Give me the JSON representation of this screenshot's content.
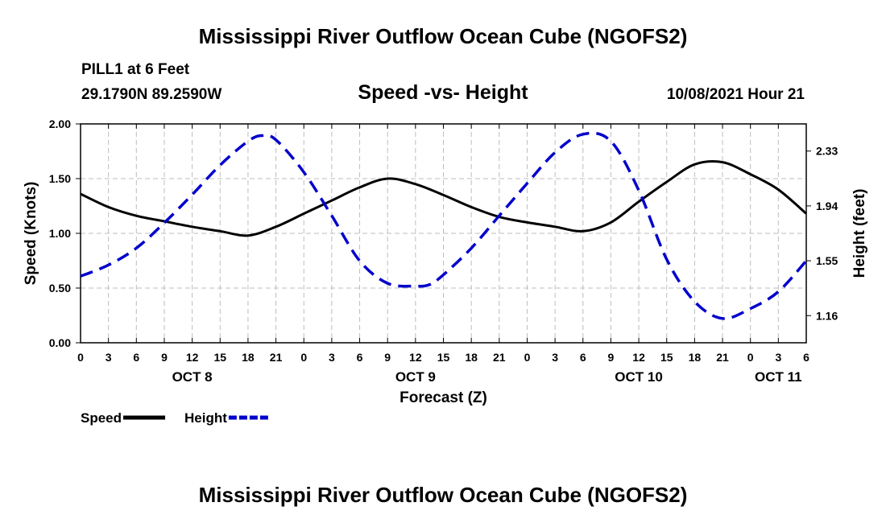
{
  "page": {
    "top_title": "Mississippi River Outflow Ocean Cube (NGOFS2)",
    "bottom_title": "Mississippi River Outflow Ocean Cube (NGOFS2)",
    "station": "PILL1 at 6 Feet",
    "coords": "29.1790N  89.2590W",
    "datetime": "10/08/2021 Hour 21"
  },
  "chart_data": {
    "type": "line",
    "title": "Speed -vs- Height",
    "xlabel": "Forecast (Z)",
    "ylabel": "Speed (Knots)",
    "ylabel_right": "Height (feet)",
    "x_hours_range": [
      0,
      78
    ],
    "ylim": [
      0,
      2
    ],
    "yticks": [
      "0.00",
      "0.50",
      "1.00",
      "1.50",
      "2.00"
    ],
    "ylim_right": [
      0.967,
      2.523
    ],
    "yticks_right": [
      1.16,
      1.55,
      1.94,
      2.33
    ],
    "xticks": [
      "0",
      "3",
      "6",
      "9",
      "12",
      "15",
      "18",
      "21",
      "0",
      "3",
      "6",
      "9",
      "12",
      "15",
      "18",
      "21",
      "0",
      "3",
      "6",
      "9",
      "12",
      "15",
      "18",
      "21",
      "0",
      "3",
      "6"
    ],
    "day_labels": [
      {
        "label": "OCT 8",
        "hour": 12
      },
      {
        "label": "OCT 9",
        "hour": 36
      },
      {
        "label": "OCT 10",
        "hour": 60
      },
      {
        "label": "OCT 11",
        "hour": 75
      }
    ],
    "grid": true,
    "legend": [
      {
        "name": "Speed",
        "color": "#000000",
        "style": "solid"
      },
      {
        "name": "Height",
        "color": "#0000cc",
        "style": "dashed"
      }
    ],
    "series": [
      {
        "name": "Speed",
        "color": "#000000",
        "axis": "left",
        "x": [
          0,
          3,
          6,
          9,
          12,
          15,
          18,
          21,
          24,
          27,
          30,
          33,
          36,
          39,
          42,
          45,
          48,
          51,
          54,
          57,
          60,
          63,
          66,
          69,
          72,
          75,
          78
        ],
        "values": [
          1.36,
          1.24,
          1.16,
          1.11,
          1.06,
          1.02,
          0.98,
          1.06,
          1.18,
          1.3,
          1.42,
          1.5,
          1.45,
          1.35,
          1.24,
          1.15,
          1.1,
          1.06,
          1.02,
          1.1,
          1.29,
          1.47,
          1.63,
          1.65,
          1.54,
          1.4,
          1.18
        ]
      },
      {
        "name": "Height",
        "color": "#0000cc",
        "axis": "right",
        "x": [
          0,
          3,
          6,
          9,
          12,
          15,
          18,
          19.5,
          21,
          24,
          27,
          30,
          33,
          36,
          37.5,
          39,
          42,
          45,
          48,
          51,
          54,
          57,
          60,
          63,
          66,
          69,
          72,
          75,
          78
        ],
        "values": [
          1.44,
          1.52,
          1.64,
          1.82,
          2.02,
          2.23,
          2.4,
          2.44,
          2.41,
          2.18,
          1.87,
          1.55,
          1.39,
          1.37,
          1.38,
          1.45,
          1.64,
          1.87,
          2.1,
          2.32,
          2.45,
          2.4,
          2.05,
          1.56,
          1.26,
          1.14,
          1.21,
          1.33,
          1.55
        ]
      }
    ]
  }
}
